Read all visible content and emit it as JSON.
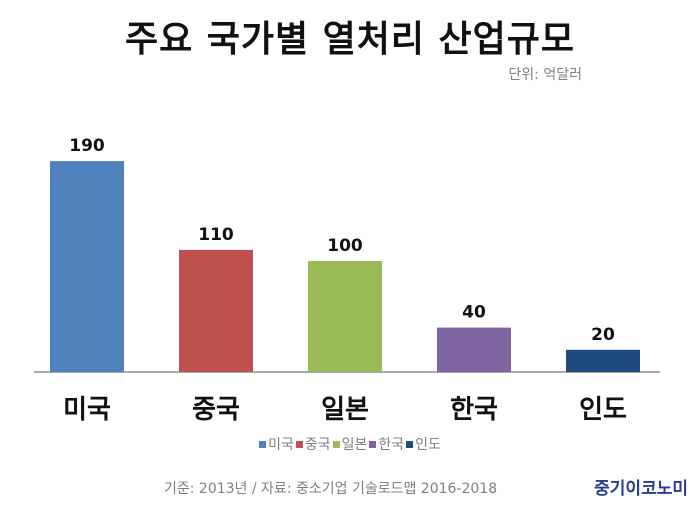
{
  "chart_data": {
    "type": "bar",
    "title": "주요 국가별 열처리 산업규모",
    "unit_label": "단위: 억달러",
    "categories": [
      "미국",
      "중국",
      "일본",
      "한국",
      "인도"
    ],
    "values": [
      190,
      110,
      100,
      40,
      20
    ],
    "colors": [
      "#4f81bd",
      "#c0504d",
      "#9bbb59",
      "#8064a2",
      "#1f497d"
    ],
    "ylim": [
      0,
      200
    ],
    "grid": false,
    "legend": "bottom",
    "legend_entries": [
      "미국",
      "중국",
      "일본",
      "한국",
      "인도"
    ]
  },
  "footer": {
    "source": "기준: 2013년  / 자료: 중소기업 기술로드맵 2016-2018",
    "brand": "중기이코노미"
  }
}
